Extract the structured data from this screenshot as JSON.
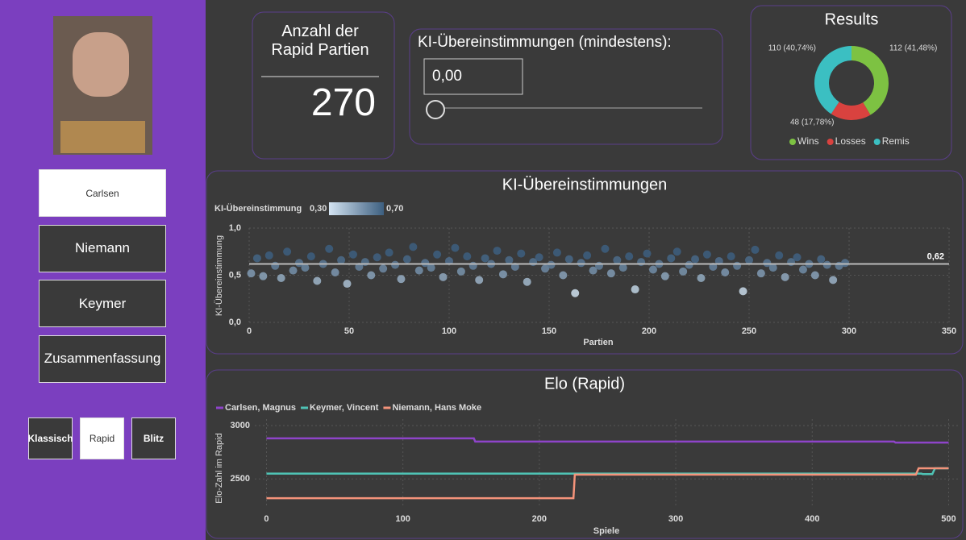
{
  "sidebar": {
    "players": [
      "Carlsen",
      "Niemann",
      "Keymer",
      "Zusammenfassung"
    ],
    "modes": [
      "Klassisch",
      "Rapid",
      "Blitz"
    ]
  },
  "count_card": {
    "title": "Anzahl der Rapid Partien",
    "value": 270
  },
  "filter_card": {
    "title": "KI-Übereinstimmungen (mindestens):",
    "input": "0,00",
    "slider_min": 0,
    "slider_value": 0
  },
  "chart_data": [
    {
      "type": "donut",
      "title": "Results",
      "categories": [
        "Wins",
        "Losses",
        "Remis"
      ],
      "values": [
        112,
        48,
        110
      ],
      "value_labels": [
        "112 (41,48%)",
        "48 (17,78%)",
        "110 (40,74%)"
      ],
      "colors": [
        "#7dc242",
        "#d9423f",
        "#3bbfc2"
      ],
      "legend": "bottom"
    },
    {
      "type": "scatter",
      "title": "KI-Übereinstimmungen",
      "x_label": "Partien",
      "y_label": "KI-Übereinstimmung",
      "color_legend": {
        "title": "KI-Übereinstimmung",
        "ticks": [
          {
            "value": 0.3,
            "label": "0,30"
          },
          {
            "value": 0.7,
            "label": "0,70"
          }
        ],
        "colors": [
          "#d3e3f1",
          "#3d5f80"
        ]
      },
      "x": [
        1,
        4,
        7,
        10,
        13,
        16,
        19,
        22,
        25,
        28,
        31,
        34,
        37,
        40,
        43,
        46,
        49,
        52,
        55,
        58,
        61,
        64,
        67,
        70,
        73,
        76,
        79,
        82,
        85,
        88,
        91,
        94,
        97,
        100,
        103,
        106,
        109,
        112,
        115,
        118,
        121,
        124,
        127,
        130,
        133,
        136,
        139,
        142,
        145,
        148,
        151,
        154,
        157,
        160,
        163,
        166,
        169,
        172,
        175,
        178,
        181,
        184,
        187,
        190,
        193,
        196,
        199,
        202,
        205,
        208,
        211,
        214,
        217,
        220,
        223,
        226,
        229,
        232,
        235,
        238,
        241,
        244,
        247,
        250,
        253,
        256,
        259,
        262,
        265,
        268,
        271,
        274,
        277,
        280,
        283,
        286,
        289,
        292,
        295,
        298
      ],
      "y": [
        0.52,
        0.68,
        0.49,
        0.71,
        0.6,
        0.47,
        0.75,
        0.55,
        0.63,
        0.58,
        0.7,
        0.44,
        0.62,
        0.78,
        0.53,
        0.66,
        0.41,
        0.72,
        0.59,
        0.64,
        0.5,
        0.69,
        0.57,
        0.74,
        0.61,
        0.46,
        0.67,
        0.8,
        0.55,
        0.63,
        0.58,
        0.72,
        0.48,
        0.65,
        0.79,
        0.54,
        0.7,
        0.6,
        0.45,
        0.68,
        0.62,
        0.76,
        0.51,
        0.66,
        0.59,
        0.73,
        0.43,
        0.64,
        0.69,
        0.57,
        0.61,
        0.74,
        0.5,
        0.67,
        0.31,
        0.63,
        0.71,
        0.55,
        0.6,
        0.78,
        0.52,
        0.66,
        0.58,
        0.7,
        0.35,
        0.64,
        0.73,
        0.56,
        0.62,
        0.49,
        0.68,
        0.75,
        0.54,
        0.61,
        0.67,
        0.47,
        0.72,
        0.59,
        0.65,
        0.53,
        0.7,
        0.6,
        0.33,
        0.66,
        0.77,
        0.52,
        0.63,
        0.58,
        0.71,
        0.48,
        0.64,
        0.69,
        0.56,
        0.62,
        0.5,
        0.67,
        0.61,
        0.45,
        0.6,
        0.63
      ],
      "reference_line": {
        "value": 0.62,
        "label": "0,62"
      },
      "xlim": [
        0,
        350
      ],
      "xticks": [
        0,
        50,
        100,
        150,
        200,
        250,
        300,
        350
      ],
      "ylim": [
        0,
        1
      ],
      "yticks": [
        {
          "value": 0,
          "label": "0,0"
        },
        {
          "value": 0.5,
          "label": "0,5"
        },
        {
          "value": 1,
          "label": "1,0"
        }
      ],
      "grid": true
    },
    {
      "type": "line",
      "title": "Elo (Rapid)",
      "x_label": "Spiele",
      "y_label": "Elo-Zahl im Rapid",
      "legend": "top-left",
      "series": [
        {
          "name": "Carlsen, Magnus",
          "color": "#8e44c9",
          "x": [
            0,
            152,
            153,
            460,
            461,
            500
          ],
          "values": [
            2880,
            2880,
            2850,
            2850,
            2840,
            2840
          ]
        },
        {
          "name": "Keymer, Vincent",
          "color": "#4fc3b5",
          "x": [
            0,
            480,
            481,
            488,
            490,
            500
          ],
          "values": [
            2550,
            2550,
            2545,
            2545,
            2600,
            2600
          ]
        },
        {
          "name": "Niemann, Hans Moke",
          "color": "#f4937a",
          "x": [
            0,
            225,
            226,
            476,
            478,
            500
          ],
          "values": [
            2320,
            2320,
            2540,
            2540,
            2600,
            2600
          ]
        }
      ],
      "xlim": [
        -18,
        508
      ],
      "xticks": [
        0,
        100,
        200,
        300,
        400,
        500
      ],
      "ylim": [
        2230,
        3060
      ],
      "yticks": [
        2500,
        3000
      ],
      "grid": true
    }
  ]
}
